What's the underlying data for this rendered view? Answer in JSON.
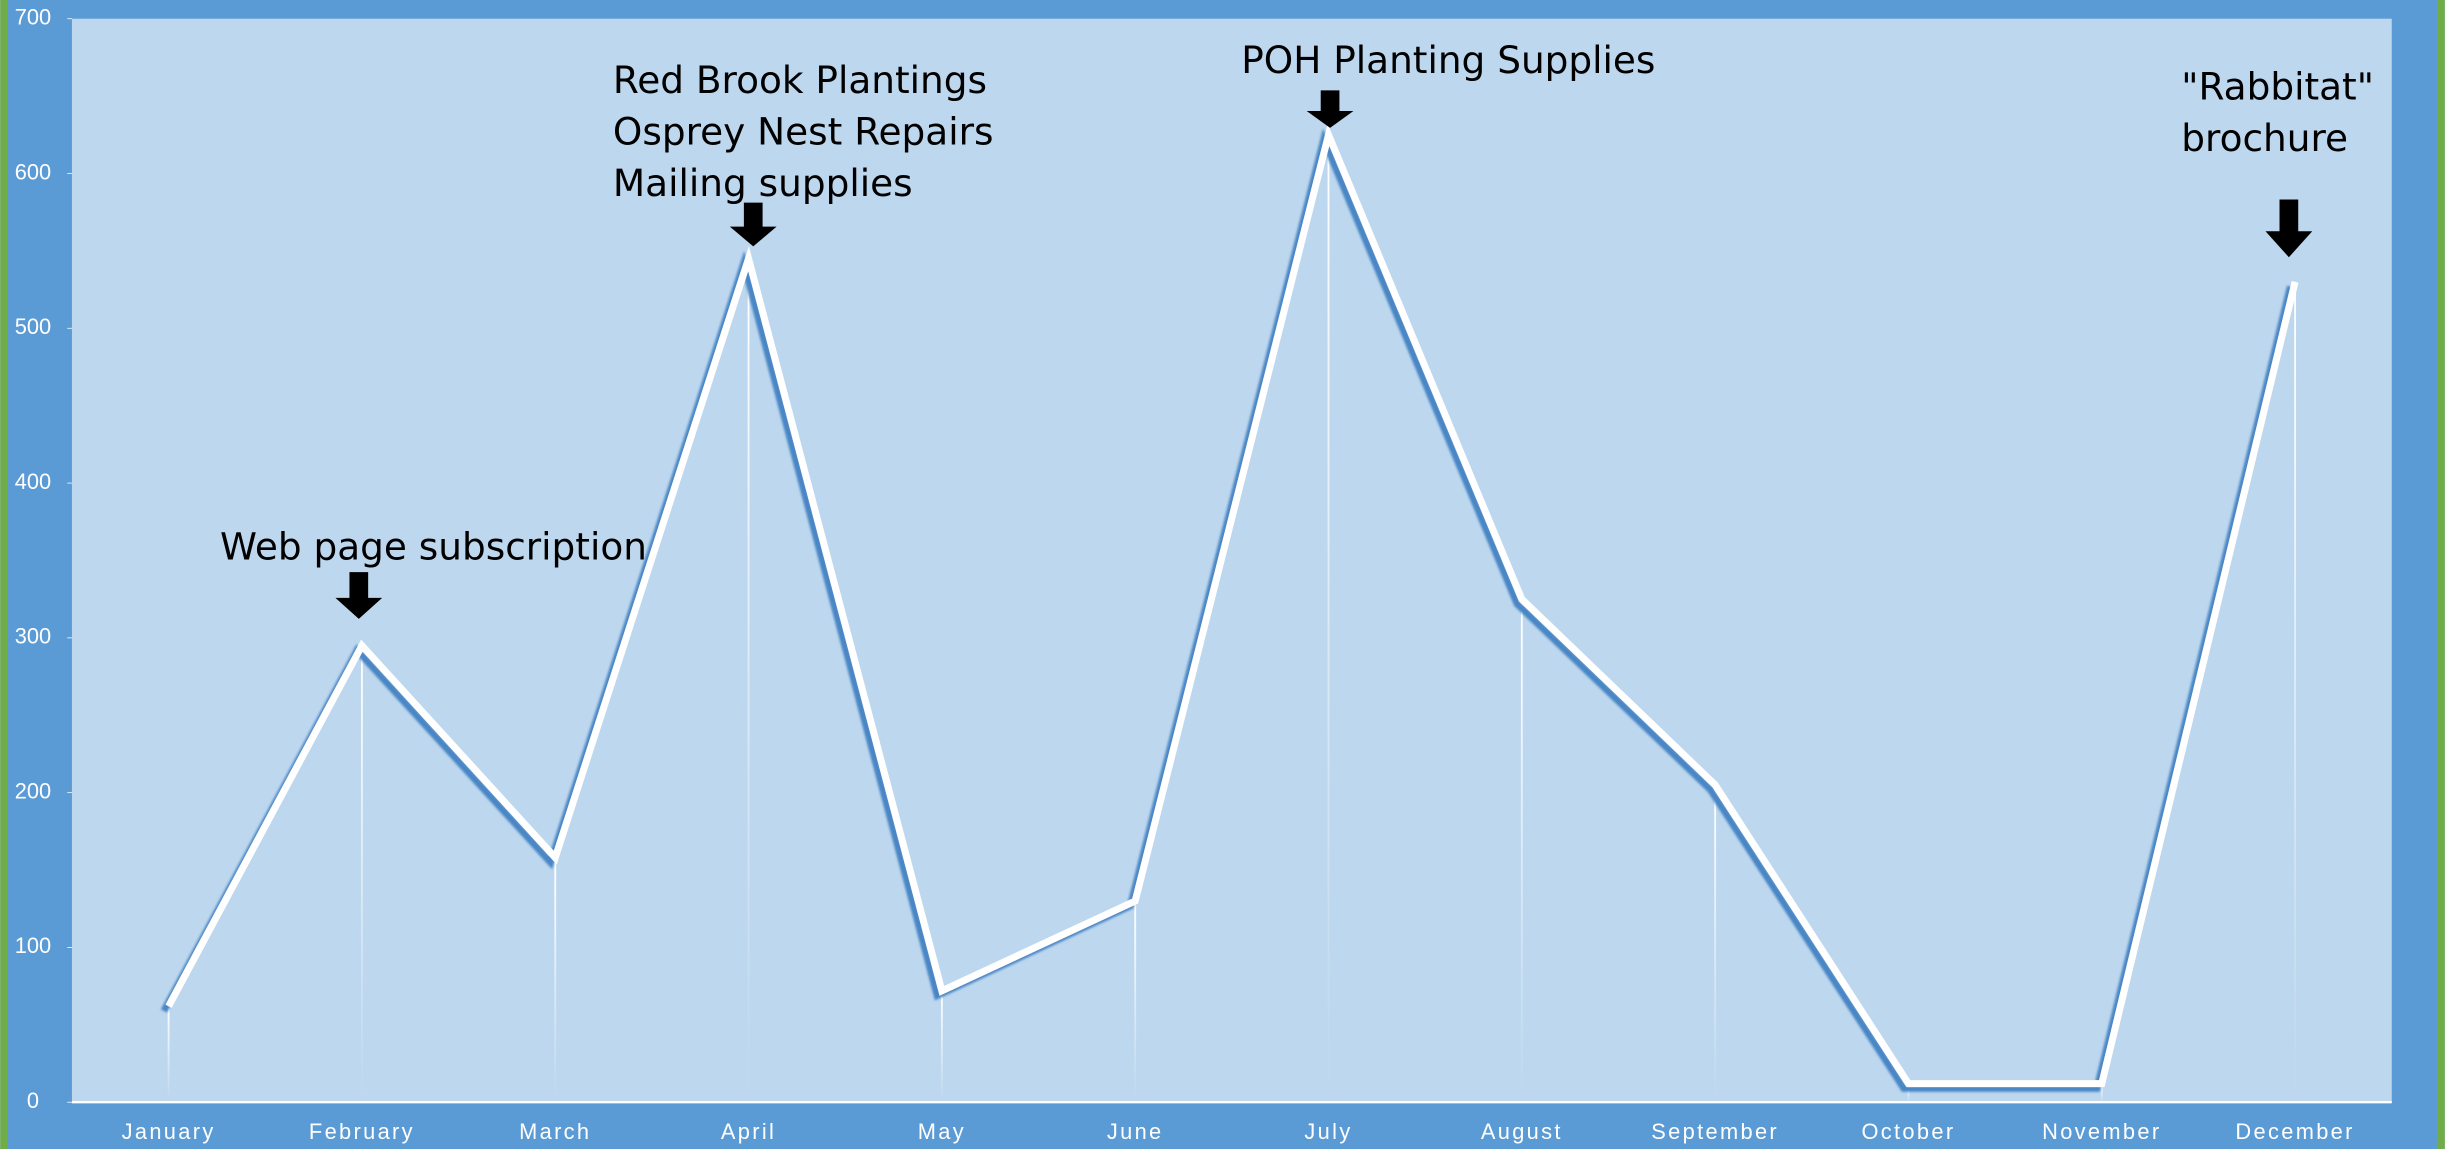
{
  "chart_data": {
    "type": "line",
    "categories": [
      "January",
      "February",
      "March",
      "April",
      "May",
      "June",
      "July",
      "August",
      "September",
      "October",
      "November",
      "December"
    ],
    "values": [
      62,
      295,
      158,
      545,
      72,
      130,
      625,
      325,
      205,
      12,
      12,
      530
    ],
    "color": "#ffffff",
    "ylim": [
      0,
      700
    ],
    "yticks": [
      0,
      100,
      200,
      300,
      400,
      500,
      600,
      700
    ],
    "grid": false,
    "annotations": [
      [
        "Web page subscription"
      ],
      [
        "Red Brook Plantings",
        "Osprey Nest Repairs",
        "Mailing supplies"
      ],
      [
        "POH Planting Supplies"
      ],
      [
        "\"Rabbitat\"",
        "brochure"
      ]
    ]
  }
}
